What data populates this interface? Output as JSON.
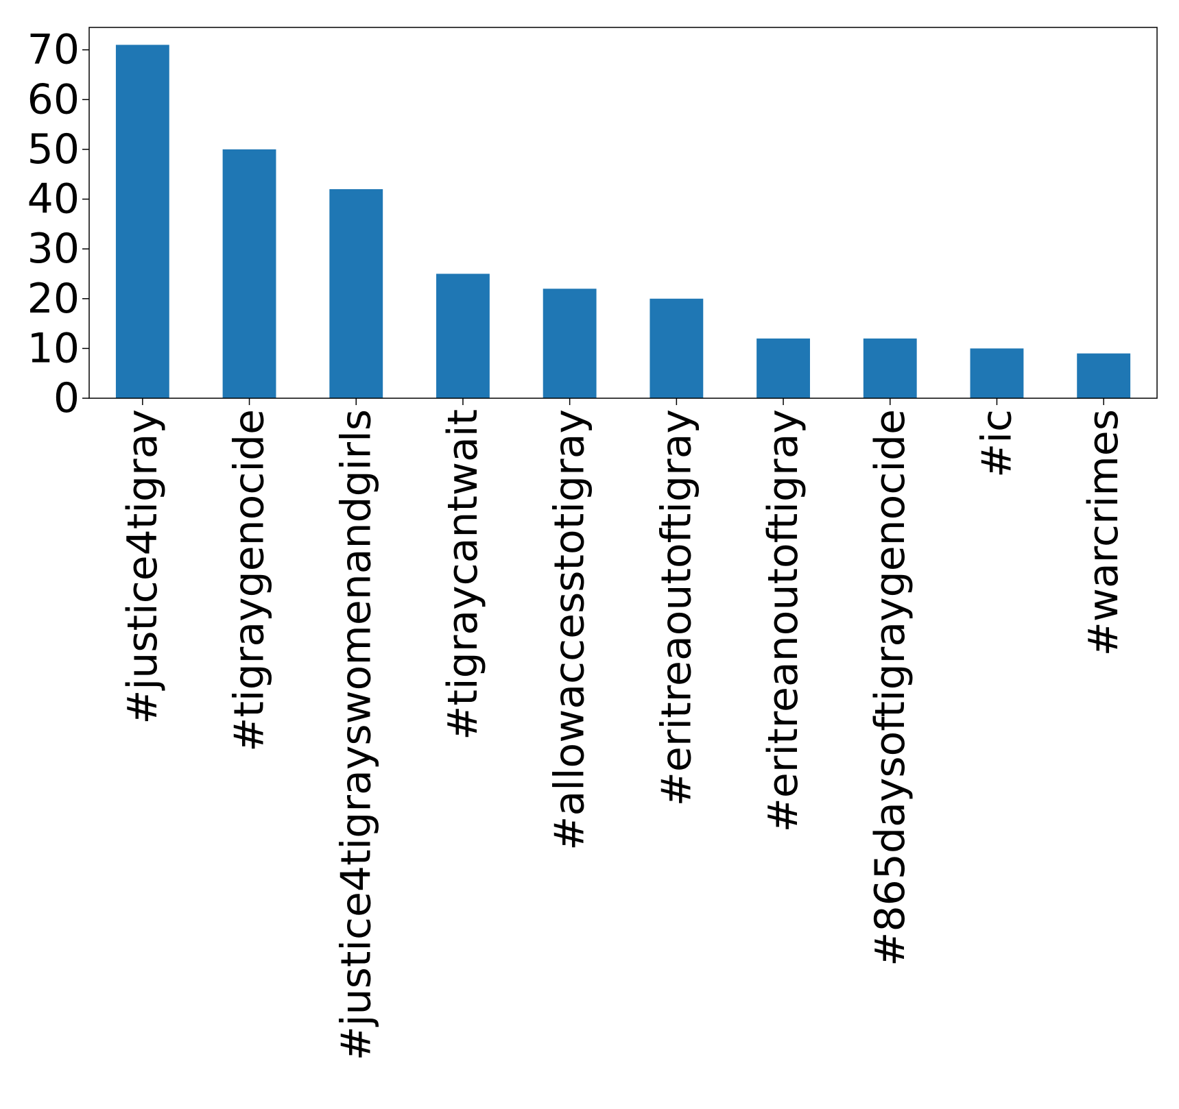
{
  "chart_data": {
    "type": "bar",
    "categories": [
      "#justice4tigray",
      "#tigraygenocide",
      "#justice4tigrayswomenandgirls",
      "#tigraycantwait",
      "#allowaccesstotigray",
      "#eritreaoutoftigray",
      "#eritreanoutoftigray",
      "#865daysoftigraygenocide",
      "#ic",
      "#warcrimes"
    ],
    "values": [
      71,
      50,
      42,
      25,
      22,
      20,
      12,
      12,
      10,
      9
    ],
    "title": "",
    "xlabel": "",
    "ylabel": "",
    "ylim": [
      0,
      74.5
    ],
    "yticks": [
      0,
      10,
      20,
      30,
      40,
      50,
      60,
      70
    ],
    "bar_color": "#1f77b4",
    "grid": false,
    "legend": false
  }
}
